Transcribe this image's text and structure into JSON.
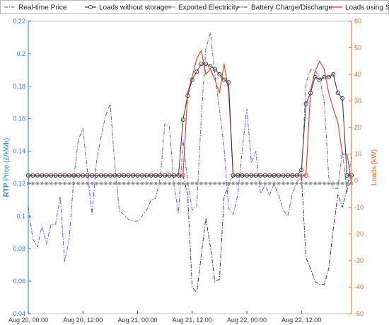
{
  "colors": {
    "price": "#4d4dd8",
    "loads_no_storage": "#333333",
    "exported": "#888888",
    "battery": "#222244",
    "loads_storage": "#e8332a",
    "left_axis": "#2a7fcf",
    "right_axis": "#e06a2a"
  },
  "chart_data": {
    "type": "line",
    "x_unit": "hours",
    "x_ticks": [
      {
        "at": 0,
        "label": "Aug 20, 00:00"
      },
      {
        "at": 12,
        "label": "Aug 20, 12:00"
      },
      {
        "at": 24,
        "label": "Aug 21, 00:00"
      },
      {
        "at": 36,
        "label": "Aug 21, 12:00"
      },
      {
        "at": 48,
        "label": "Aug 22, 00:00"
      },
      {
        "at": 60,
        "label": "Aug 22, 12:00"
      }
    ],
    "xlim": [
      0,
      71
    ],
    "left_axis": {
      "label_bold": "RTP",
      "label_rest": " Price (£/kWh)",
      "ylim": [
        0.04,
        0.22
      ],
      "ticks": [
        0.04,
        0.06,
        0.08,
        0.1,
        0.12,
        0.14,
        0.16,
        0.18,
        0.2,
        0.22
      ]
    },
    "right_axis": {
      "label": "Loads (kW)",
      "ylim": [
        -50,
        60
      ],
      "ticks": [
        -50,
        -40,
        -30,
        -20,
        -10,
        0,
        10,
        20,
        30,
        40,
        50,
        60
      ]
    },
    "legend": [
      {
        "name": "Real-time Price",
        "series": "price"
      },
      {
        "name": "Loads without storage",
        "series": "loads_no_storage"
      },
      {
        "name": "Exported Electricity",
        "series": "exported"
      },
      {
        "name": "Battery Charge/Discharge",
        "series": "battery"
      },
      {
        "name": "Loads using Storage",
        "series": "loads_storage"
      }
    ],
    "series": {
      "price": {
        "axis": "left",
        "x": [
          0,
          1,
          2,
          3,
          4,
          5,
          6,
          7,
          8,
          9,
          10,
          11,
          12,
          13,
          14,
          15,
          16,
          17,
          18,
          19,
          20,
          21,
          22,
          23,
          24,
          25,
          26,
          27,
          28,
          29,
          30,
          31,
          32,
          33,
          34,
          35,
          36,
          37,
          38,
          39,
          40,
          41,
          42,
          43,
          44,
          45,
          46,
          47,
          48,
          49,
          50,
          51,
          52,
          53,
          54,
          55,
          56,
          57,
          58,
          59,
          60,
          61,
          62,
          63,
          64,
          65,
          66,
          67,
          68,
          69,
          70,
          71
        ],
        "y": [
          0.106,
          0.086,
          0.081,
          0.094,
          0.083,
          0.095,
          0.095,
          0.112,
          0.072,
          0.086,
          0.124,
          0.147,
          0.154,
          0.127,
          0.101,
          0.134,
          0.149,
          0.162,
          0.169,
          0.132,
          0.103,
          0.101,
          0.098,
          0.097,
          0.097,
          0.1,
          0.104,
          0.11,
          0.111,
          0.124,
          0.157,
          0.155,
          0.119,
          0.102,
          0.147,
          0.121,
          0.104,
          0.106,
          0.161,
          0.203,
          0.213,
          0.187,
          0.166,
          0.142,
          0.105,
          0.101,
          0.113,
          0.141,
          0.166,
          0.133,
          0.14,
          0.114,
          0.119,
          0.113,
          0.12,
          0.113,
          0.104,
          0.1,
          0.114,
          0.121,
          0.124,
          0.182,
          0.19,
          0.19,
          0.185,
          0.171,
          0.124,
          0.117,
          0.117,
          0.14,
          0.115,
          0.138
        ]
      },
      "loads_no_storage": {
        "axis": "right",
        "x": [
          0,
          1,
          2,
          3,
          4,
          5,
          6,
          7,
          8,
          9,
          10,
          11,
          12,
          13,
          14,
          15,
          16,
          17,
          18,
          19,
          20,
          21,
          22,
          23,
          24,
          25,
          26,
          27,
          28,
          29,
          30,
          31,
          32,
          33,
          34,
          35,
          36,
          37,
          38,
          39,
          40,
          41,
          42,
          43,
          44,
          45,
          46,
          47,
          48,
          49,
          50,
          51,
          52,
          53,
          54,
          55,
          56,
          57,
          58,
          59,
          60,
          61,
          62,
          63,
          64,
          65,
          66,
          67,
          68,
          69,
          70,
          71
        ],
        "y": [
          2,
          2,
          2,
          2,
          2,
          2,
          2,
          2,
          2,
          2,
          2,
          2,
          2,
          2,
          2,
          2,
          2,
          2,
          2,
          2,
          2,
          2,
          2,
          2,
          2,
          2,
          2,
          2,
          2,
          2,
          2,
          2,
          2,
          2,
          23,
          32,
          38,
          41,
          44,
          44,
          43,
          42,
          40,
          38,
          37,
          2,
          2,
          2,
          2,
          2,
          2,
          2,
          2,
          2,
          2,
          2,
          2,
          2,
          2,
          2,
          4,
          29,
          33,
          39,
          38,
          39,
          39,
          40,
          33,
          31,
          2,
          2
        ]
      },
      "exported": {
        "axis": "right",
        "x": [
          0,
          1,
          2,
          3,
          4,
          5,
          6,
          7,
          8,
          9,
          10,
          11,
          12,
          13,
          14,
          15,
          16,
          17,
          18,
          19,
          20,
          21,
          22,
          23,
          24,
          25,
          26,
          27,
          28,
          29,
          30,
          31,
          32,
          33,
          34,
          35,
          36,
          37,
          38,
          39,
          40,
          41,
          42,
          43,
          44,
          45,
          46,
          47,
          48,
          49,
          50,
          51,
          52,
          53,
          54,
          55,
          56,
          57,
          58,
          59,
          60,
          61,
          62,
          63,
          64,
          65,
          66,
          67,
          68,
          69,
          70,
          71
        ],
        "y": [
          -1,
          -1,
          -1,
          -1,
          -1,
          -1,
          -1,
          -1,
          -1,
          -1,
          -1,
          -1,
          -1,
          -1,
          -1,
          -1,
          -1,
          -1,
          -1,
          -1,
          -1,
          -1,
          -1,
          -1,
          -1,
          -1,
          -1,
          -1,
          -1,
          -1,
          -1,
          -1,
          -1,
          -1,
          -1,
          -1,
          -1,
          -1,
          -1,
          -1,
          -1,
          -1,
          -1,
          -1,
          -1,
          -1,
          -1,
          -1,
          -1,
          -1,
          -1,
          -1,
          -1,
          -1,
          -1,
          -1,
          -1,
          -1,
          -1,
          -1,
          -1,
          -1,
          -1,
          -1,
          -1,
          -1,
          -1,
          -1,
          -1,
          -1,
          -1,
          -1
        ]
      },
      "battery": {
        "axis": "right",
        "x": [
          0,
          1,
          2,
          3,
          4,
          5,
          6,
          7,
          8,
          9,
          10,
          11,
          12,
          13,
          14,
          15,
          16,
          17,
          18,
          19,
          20,
          21,
          22,
          23,
          24,
          25,
          26,
          27,
          28,
          29,
          30,
          31,
          32,
          33,
          34,
          35,
          36,
          37,
          38,
          39,
          40,
          41,
          42,
          43,
          44,
          45,
          46,
          47,
          48,
          49,
          50,
          51,
          52,
          53,
          54,
          55,
          56,
          57,
          58,
          59,
          60,
          61,
          62,
          63,
          64,
          65,
          66,
          67,
          68,
          69,
          70,
          71
        ],
        "y": [
          2,
          2,
          2,
          2,
          2,
          2,
          2,
          2,
          2,
          2,
          2,
          2,
          2,
          2,
          2,
          2,
          2,
          2,
          2,
          2,
          2,
          2,
          2,
          2,
          2,
          2,
          2,
          2,
          2,
          2,
          2,
          2,
          2,
          2,
          2,
          -5,
          -40,
          -42,
          -28,
          -14,
          -25,
          -38,
          -37,
          -6,
          -2,
          2,
          2,
          2,
          2,
          2,
          2,
          2,
          2,
          2,
          2,
          2,
          2,
          2,
          2,
          2,
          2,
          -29,
          -33,
          -38,
          -39,
          -39,
          -33,
          -18,
          -5,
          -10,
          -3,
          0
        ]
      },
      "loads_storage": {
        "axis": "right",
        "x": [
          0,
          1,
          2,
          3,
          4,
          5,
          6,
          7,
          8,
          9,
          10,
          11,
          12,
          13,
          14,
          15,
          16,
          17,
          18,
          19,
          20,
          21,
          22,
          23,
          24,
          25,
          26,
          27,
          28,
          29,
          30,
          31,
          32,
          33,
          34,
          35,
          36,
          37,
          38,
          39,
          40,
          41,
          42,
          43,
          44,
          45,
          46,
          47,
          48,
          49,
          50,
          51,
          52,
          53,
          54,
          55,
          56,
          57,
          58,
          59,
          60,
          61,
          62,
          63,
          64,
          65,
          66,
          67,
          68,
          69,
          70,
          71
        ],
        "y": [
          2,
          2,
          2,
          2,
          2,
          2,
          2,
          2,
          2,
          2,
          2,
          2,
          2,
          2,
          2,
          2,
          2,
          2,
          2,
          2,
          2,
          2,
          2,
          2,
          2,
          2,
          2,
          2,
          2,
          2,
          2,
          2,
          2,
          2,
          2,
          33,
          39,
          46,
          49,
          40,
          42,
          38,
          33,
          44,
          34,
          2,
          2,
          2,
          2,
          2,
          2,
          2,
          2,
          2,
          2,
          2,
          2,
          2,
          2,
          2,
          2,
          2,
          34,
          41,
          45,
          42,
          33,
          27,
          22,
          10,
          10,
          -1
        ]
      }
    }
  }
}
